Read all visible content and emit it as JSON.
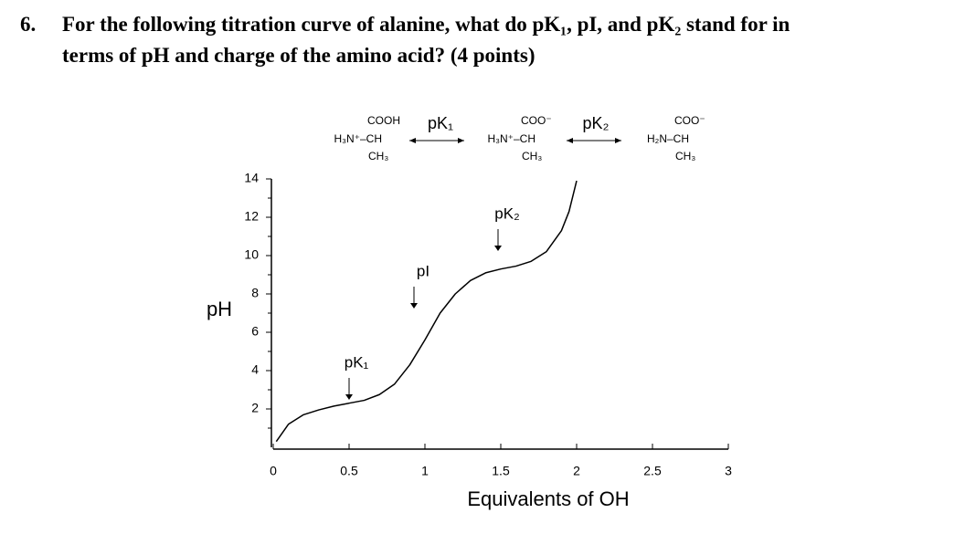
{
  "question": {
    "number": "6.",
    "lines": [
      "For the following titration curve of alanine, what do pK₁, pI, and pK₂ stand for in",
      "terms of pH and charge of the amino acid?  (4 points)"
    ]
  },
  "chart_data": {
    "type": "line",
    "x_label": "Equivalents of OH",
    "y_label": "pH",
    "x": [
      0.02,
      0.1,
      0.2,
      0.3,
      0.4,
      0.5,
      0.6,
      0.7,
      0.8,
      0.9,
      1.0,
      1.1,
      1.2,
      1.3,
      1.4,
      1.5,
      1.6,
      1.7,
      1.8,
      1.9,
      1.95,
      2.0
    ],
    "series": [
      {
        "name": "alanine",
        "color": "#000000",
        "values": [
          0.3,
          1.2,
          1.7,
          1.95,
          2.15,
          2.3,
          2.45,
          2.75,
          3.3,
          4.3,
          5.6,
          7.0,
          8.0,
          8.7,
          9.1,
          9.3,
          9.45,
          9.7,
          10.2,
          11.3,
          12.3,
          13.9
        ]
      }
    ],
    "xlim": [
      0,
      3
    ],
    "ylim": [
      0,
      14
    ],
    "xticks": [
      0,
      0.5,
      1,
      1.5,
      2,
      2.5,
      3
    ],
    "yticks": [
      2,
      4,
      6,
      8,
      10,
      12,
      14
    ],
    "yminor_ticks": [
      1,
      3,
      5,
      7,
      9,
      11,
      13
    ],
    "annotations": [
      "pK₁",
      "pI",
      "pK₂"
    ],
    "structures": [
      [
        "COOH",
        "H₃N⁺–CH",
        "CH₃"
      ],
      [
        "COO⁻",
        "H₃N⁺–CH",
        "CH₃"
      ],
      [
        "COO⁻",
        "H₂N–CH",
        "CH₃"
      ]
    ],
    "equilibria": [
      "pK₁",
      "pK₂"
    ]
  }
}
